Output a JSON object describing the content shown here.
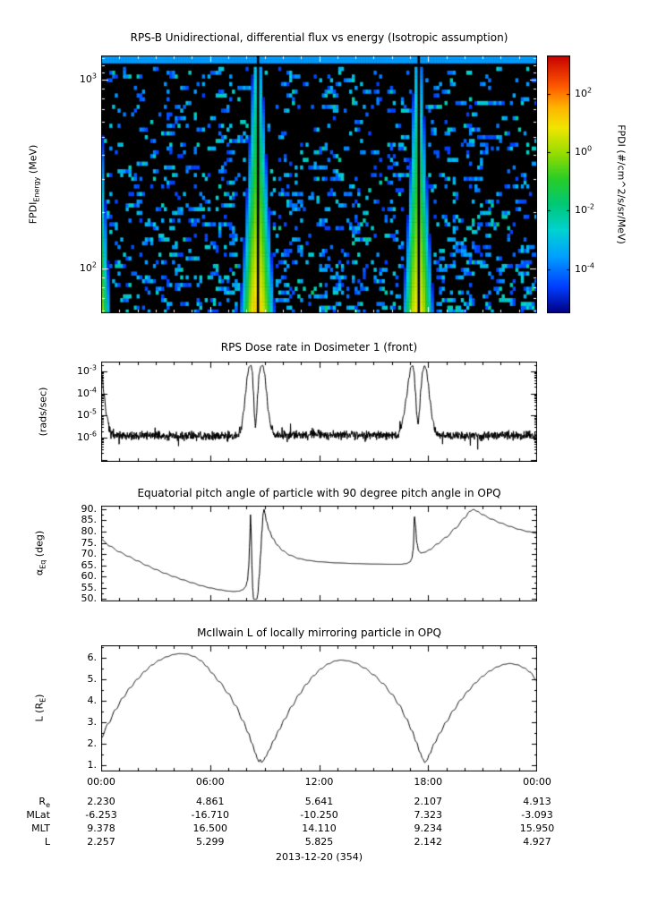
{
  "page": {
    "background": "#ffffff",
    "text_color": "#000000",
    "axis_color": "#000000",
    "plot_background": "#000000"
  },
  "date_label": "2013-12-20 (354)",
  "time_ticks": [
    "00:00",
    "06:00",
    "12:00",
    "18:00",
    "00:00"
  ],
  "ephemeris_table": {
    "rows": [
      {
        "label": "R",
        "label_sub": "e",
        "values": [
          "2.230",
          "4.861",
          "5.641",
          "2.107",
          "4.913"
        ]
      },
      {
        "label": "MLat",
        "label_sub": "",
        "values": [
          "-6.253",
          "-16.710",
          "-10.250",
          "7.323",
          "-3.093"
        ]
      },
      {
        "label": "MLT",
        "label_sub": "",
        "values": [
          "9.378",
          "16.500",
          "14.110",
          "9.234",
          "15.950"
        ]
      },
      {
        "label": "L",
        "label_sub": "",
        "values": [
          "2.257",
          "5.299",
          "5.825",
          "2.142",
          "4.927"
        ]
      }
    ]
  },
  "chart_data": [
    {
      "id": "flux_spectrogram",
      "type": "heatmap",
      "title": "RPS-B Unidirectional, differential flux vs energy (Isotropic assumption)",
      "ylabel": {
        "prefix": "FPDI",
        "sub": "Energy",
        "suffix": " (MeV)"
      },
      "x_range_hours": [
        0,
        24
      ],
      "y_mev": [
        58,
        1350
      ],
      "y_ticks": [
        {
          "base": "10",
          "exp": "3",
          "value": 1000
        },
        {
          "base": "10",
          "exp": "2",
          "value": 100
        }
      ],
      "background": "#000000",
      "colormap_stops": [
        [
          0,
          "#000082"
        ],
        [
          0.1,
          "#003cff"
        ],
        [
          0.22,
          "#00a0ff"
        ],
        [
          0.32,
          "#00d2d2"
        ],
        [
          0.42,
          "#00c878"
        ],
        [
          0.52,
          "#28cd28"
        ],
        [
          0.62,
          "#96dc00"
        ],
        [
          0.72,
          "#f0e600"
        ],
        [
          0.8,
          "#ffb400"
        ],
        [
          0.88,
          "#ff5a00"
        ],
        [
          1,
          "#c80000"
        ]
      ],
      "colorbar": {
        "label": "FPDI (#/cm^2/s/sr/MeV)",
        "log_range": [
          -5.5,
          3.3
        ],
        "ticks": [
          {
            "base": "10",
            "exp": "2",
            "value_log": 2
          },
          {
            "base": "10",
            "exp": "0",
            "value_log": 0
          },
          {
            "base": "10",
            "exp": "-2",
            "value_log": -2
          },
          {
            "base": "10",
            "exp": "-4",
            "value_log": -4
          }
        ]
      },
      "features": {
        "top_band": {
          "rows": 2,
          "log_value": -3.6
        },
        "plumes": [
          {
            "center_h": -0.25,
            "amp": 0.9,
            "amp_slope": -3.9,
            "sigma0": 0.5,
            "sigma1": 0.2,
            "gap_halfwidth_h": 0
          },
          {
            "center_h": 8.6,
            "amp": 1.3,
            "amp_slope": -3.9,
            "sigma0": 0.62,
            "sigma1": 0.24,
            "gap_halfwidth_h": 0.055
          },
          {
            "center_h": 17.45,
            "amp": 1.05,
            "amp_slope": -3.9,
            "sigma0": 0.56,
            "sigma1": 0.22,
            "gap_halfwidth_h": 0.05
          }
        ],
        "speckle": {
          "base_prob": 0.5,
          "energy_falloff": 0.62,
          "log_min": -4.6,
          "log_span": 2.4
        },
        "black_threshold": -5.1
      },
      "grid": {
        "nt": 160,
        "ne": 68
      }
    },
    {
      "id": "dose_rate",
      "type": "line",
      "title": "RPS Dose rate in Dosimeter 1 (front)",
      "ylabel": "(rads/sec)",
      "x_range_hours": [
        0,
        24
      ],
      "y_log_range": [
        -7.1,
        -2.55
      ],
      "y_ticks": [
        {
          "base": "10",
          "exp": "-3",
          "log": -3
        },
        {
          "base": "10",
          "exp": "-4",
          "log": -4
        },
        {
          "base": "10",
          "exp": "-5",
          "log": -5
        },
        {
          "base": "10",
          "exp": "-6",
          "log": -6
        }
      ],
      "noise": {
        "sigma_log": 0.1,
        "baseline_log_threshold": -5.4
      },
      "keypoints_log": [
        [
          0,
          -3.0
        ],
        [
          0.06,
          -3.2
        ],
        [
          0.15,
          -4.0
        ],
        [
          0.3,
          -5.0
        ],
        [
          0.5,
          -5.7
        ],
        [
          0.8,
          -5.92
        ],
        [
          7.5,
          -5.92
        ],
        [
          7.7,
          -5.6
        ],
        [
          7.85,
          -4.8
        ],
        [
          7.95,
          -4.0
        ],
        [
          8.05,
          -3.2
        ],
        [
          8.15,
          -2.78
        ],
        [
          8.25,
          -2.72
        ],
        [
          8.32,
          -3.0
        ],
        [
          8.38,
          -3.9
        ],
        [
          8.45,
          -5.1
        ],
        [
          8.5,
          -5.5
        ],
        [
          8.55,
          -5.0
        ],
        [
          8.62,
          -4.0
        ],
        [
          8.7,
          -3.1
        ],
        [
          8.8,
          -2.76
        ],
        [
          8.9,
          -2.72
        ],
        [
          9.0,
          -3.1
        ],
        [
          9.1,
          -3.9
        ],
        [
          9.2,
          -4.8
        ],
        [
          9.35,
          -5.5
        ],
        [
          9.55,
          -5.88
        ],
        [
          16.3,
          -5.9
        ],
        [
          16.5,
          -5.6
        ],
        [
          16.65,
          -5.0
        ],
        [
          16.8,
          -4.2
        ],
        [
          16.95,
          -3.3
        ],
        [
          17.05,
          -2.8
        ],
        [
          17.15,
          -2.73
        ],
        [
          17.22,
          -3.0
        ],
        [
          17.3,
          -3.9
        ],
        [
          17.38,
          -5.0
        ],
        [
          17.45,
          -5.4
        ],
        [
          17.52,
          -4.8
        ],
        [
          17.6,
          -3.8
        ],
        [
          17.7,
          -3.0
        ],
        [
          17.8,
          -2.74
        ],
        [
          17.9,
          -2.9
        ],
        [
          18.0,
          -3.5
        ],
        [
          18.1,
          -4.3
        ],
        [
          18.25,
          -5.2
        ],
        [
          18.45,
          -5.8
        ],
        [
          18.7,
          -5.92
        ],
        [
          24,
          -5.9
        ]
      ]
    },
    {
      "id": "equatorial_pitch_angle",
      "type": "line",
      "title": "Equatorial pitch angle of particle with 90 degree pitch angle in OPQ",
      "ylabel": {
        "prefix": "α",
        "sub": "Eq",
        "suffix": " (deg)"
      },
      "x_range_hours": [
        0,
        24
      ],
      "y_range": [
        49,
        91.5
      ],
      "clip_min": 50,
      "y_ticks": [
        {
          "label": "90.",
          "value": 90
        },
        {
          "label": "85.",
          "value": 85
        },
        {
          "label": "80.",
          "value": 80
        },
        {
          "label": "75.",
          "value": 75
        },
        {
          "label": "70.",
          "value": 70
        },
        {
          "label": "65.",
          "value": 65
        },
        {
          "label": "60.",
          "value": 60
        },
        {
          "label": "55.",
          "value": 55
        },
        {
          "label": "50.",
          "value": 50
        }
      ],
      "keypoints": [
        [
          0,
          76.5
        ],
        [
          0.5,
          73.5
        ],
        [
          1,
          71
        ],
        [
          1.5,
          69
        ],
        [
          2,
          67
        ],
        [
          2.5,
          65
        ],
        [
          3,
          63.2
        ],
        [
          3.5,
          61.5
        ],
        [
          4,
          60
        ],
        [
          4.5,
          58.6
        ],
        [
          5,
          57.3
        ],
        [
          5.5,
          56
        ],
        [
          6,
          55
        ],
        [
          6.5,
          54.2
        ],
        [
          7,
          53.6
        ],
        [
          7.3,
          53.4
        ],
        [
          7.6,
          53.6
        ],
        [
          7.8,
          54.2
        ],
        [
          7.95,
          55.5
        ],
        [
          8.05,
          58
        ],
        [
          8.12,
          64
        ],
        [
          8.18,
          76
        ],
        [
          8.22,
          87.5
        ],
        [
          8.26,
          80
        ],
        [
          8.3,
          65
        ],
        [
          8.35,
          54
        ],
        [
          8.4,
          49
        ],
        [
          8.55,
          49
        ],
        [
          8.62,
          52
        ],
        [
          8.7,
          60
        ],
        [
          8.78,
          70
        ],
        [
          8.85,
          80
        ],
        [
          8.92,
          88
        ],
        [
          8.97,
          90
        ],
        [
          9.02,
          88
        ],
        [
          9.1,
          84.5
        ],
        [
          9.25,
          80.5
        ],
        [
          9.45,
          77
        ],
        [
          9.7,
          74
        ],
        [
          10,
          71.5
        ],
        [
          10.4,
          69.5
        ],
        [
          10.9,
          68
        ],
        [
          11.4,
          67.2
        ],
        [
          12,
          66.6
        ],
        [
          13,
          66.1
        ],
        [
          14,
          65.8
        ],
        [
          15,
          65.6
        ],
        [
          16,
          65.5
        ],
        [
          16.5,
          65.5
        ],
        [
          16.8,
          65.8
        ],
        [
          17.0,
          66.5
        ],
        [
          17.1,
          68
        ],
        [
          17.18,
          72
        ],
        [
          17.25,
          87
        ],
        [
          17.3,
          83
        ],
        [
          17.38,
          75
        ],
        [
          17.48,
          71.5
        ],
        [
          17.6,
          70.5
        ],
        [
          17.8,
          70.8
        ],
        [
          18.1,
          72
        ],
        [
          18.5,
          74.5
        ],
        [
          19,
          77.5
        ],
        [
          19.5,
          81.5
        ],
        [
          20,
          86
        ],
        [
          20.3,
          89
        ],
        [
          20.5,
          89.8
        ],
        [
          20.7,
          89
        ],
        [
          21,
          87.5
        ],
        [
          21.5,
          85.5
        ],
        [
          22,
          83.8
        ],
        [
          22.5,
          82.3
        ],
        [
          23,
          81
        ],
        [
          23.5,
          80
        ],
        [
          24,
          79.2
        ]
      ]
    },
    {
      "id": "mcilwain_l",
      "type": "line",
      "title": "McIlwain L of locally mirroring particle in OPQ",
      "ylabel": {
        "prefix": "L (R",
        "sub": "E",
        "suffix": ")"
      },
      "x_range_hours": [
        0,
        24
      ],
      "y_range": [
        0.7,
        6.6
      ],
      "y_ticks": [
        {
          "label": "6.",
          "value": 6
        },
        {
          "label": "5.",
          "value": 5
        },
        {
          "label": "4.",
          "value": 4
        },
        {
          "label": "3.",
          "value": 3
        },
        {
          "label": "2.",
          "value": 2
        },
        {
          "label": "1.",
          "value": 1
        }
      ],
      "keypoints": [
        [
          0,
          2.26
        ],
        [
          0.4,
          2.95
        ],
        [
          0.8,
          3.6
        ],
        [
          1.2,
          4.15
        ],
        [
          1.6,
          4.62
        ],
        [
          2,
          5.02
        ],
        [
          2.4,
          5.38
        ],
        [
          2.8,
          5.68
        ],
        [
          3.2,
          5.9
        ],
        [
          3.6,
          6.06
        ],
        [
          4,
          6.17
        ],
        [
          4.3,
          6.21
        ],
        [
          4.7,
          6.19
        ],
        [
          5.1,
          6.08
        ],
        [
          5.5,
          5.88
        ],
        [
          5.8,
          5.62
        ],
        [
          6.1,
          5.3
        ],
        [
          6.5,
          4.9
        ],
        [
          7,
          4.35
        ],
        [
          7.4,
          3.78
        ],
        [
          7.8,
          3.08
        ],
        [
          8.1,
          2.5
        ],
        [
          8.3,
          2.02
        ],
        [
          8.5,
          1.55
        ],
        [
          8.6,
          1.3
        ],
        [
          8.68,
          1.15
        ],
        [
          8.76,
          1.26
        ],
        [
          8.84,
          1.12
        ],
        [
          8.92,
          1.2
        ],
        [
          9.05,
          1.38
        ],
        [
          9.25,
          1.7
        ],
        [
          9.5,
          2.15
        ],
        [
          9.8,
          2.65
        ],
        [
          10.1,
          3.15
        ],
        [
          10.5,
          3.75
        ],
        [
          10.9,
          4.3
        ],
        [
          11.3,
          4.78
        ],
        [
          11.7,
          5.18
        ],
        [
          12.1,
          5.5
        ],
        [
          12.5,
          5.73
        ],
        [
          12.9,
          5.87
        ],
        [
          13.2,
          5.91
        ],
        [
          13.6,
          5.87
        ],
        [
          14,
          5.77
        ],
        [
          14.5,
          5.54
        ],
        [
          15,
          5.22
        ],
        [
          15.5,
          4.82
        ],
        [
          16,
          4.32
        ],
        [
          16.4,
          3.82
        ],
        [
          16.8,
          3.18
        ],
        [
          17.1,
          2.62
        ],
        [
          17.35,
          2.08
        ],
        [
          17.55,
          1.6
        ],
        [
          17.7,
          1.3
        ],
        [
          17.82,
          1.12
        ],
        [
          17.93,
          1.22
        ],
        [
          18.08,
          1.52
        ],
        [
          18.35,
          2.02
        ],
        [
          18.65,
          2.5
        ],
        [
          19,
          3.02
        ],
        [
          19.4,
          3.56
        ],
        [
          19.8,
          4.05
        ],
        [
          20.2,
          4.46
        ],
        [
          20.6,
          4.84
        ],
        [
          21,
          5.15
        ],
        [
          21.4,
          5.4
        ],
        [
          21.8,
          5.59
        ],
        [
          22.2,
          5.71
        ],
        [
          22.5,
          5.75
        ],
        [
          22.9,
          5.69
        ],
        [
          23.3,
          5.54
        ],
        [
          23.6,
          5.35
        ],
        [
          24,
          4.93
        ]
      ]
    }
  ]
}
